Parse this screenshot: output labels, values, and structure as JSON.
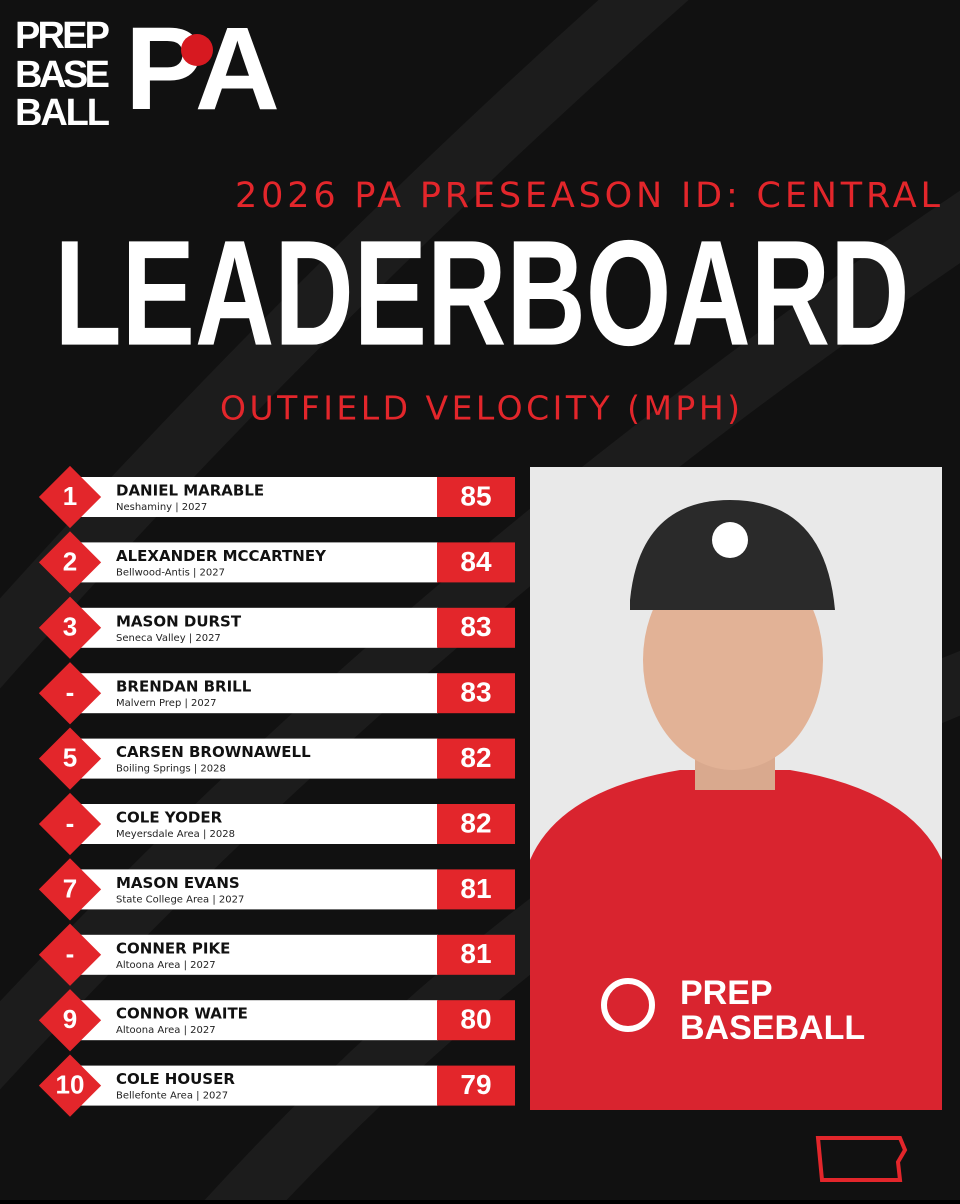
{
  "logo": {
    "lines": [
      "PREP",
      "BASE",
      "BALL"
    ],
    "mark": "PA"
  },
  "header": {
    "event": "2026 PA PRESEASON ID: CENTRAL",
    "title": "LEADERBOARD",
    "subtitle": "OUTFIELD VELOCITY (MPH)"
  },
  "leaderboard": {
    "rows": [
      {
        "rank": "1",
        "name": "DANIEL MARABLE",
        "detail": "Neshaminy | 2027",
        "value": 85
      },
      {
        "rank": "2",
        "name": "ALEXANDER MCCARTNEY",
        "detail": "Bellwood-Antis | 2027",
        "value": 84
      },
      {
        "rank": "3",
        "name": "MASON DURST",
        "detail": "Seneca Valley | 2027",
        "value": 83
      },
      {
        "rank": "-",
        "name": "BRENDAN BRILL",
        "detail": "Malvern Prep | 2027",
        "value": 83
      },
      {
        "rank": "5",
        "name": "CARSEN BROWNAWELL",
        "detail": "Boiling Springs | 2028",
        "value": 82
      },
      {
        "rank": "-",
        "name": "COLE YODER",
        "detail": "Meyersdale Area | 2028",
        "value": 82
      },
      {
        "rank": "7",
        "name": "MASON EVANS",
        "detail": "State College Area | 2027",
        "value": 81
      },
      {
        "rank": "-",
        "name": "CONNER PIKE",
        "detail": "Altoona Area | 2027",
        "value": 81
      },
      {
        "rank": "9",
        "name": "CONNOR WAITE",
        "detail": "Altoona Area | 2027",
        "value": 80
      },
      {
        "rank": "10",
        "name": "COLE HOUSER",
        "detail": "Bellefonte Area | 2027",
        "value": 79
      }
    ]
  },
  "photo": {
    "shirt_text": [
      "PREP",
      "BASEBALL"
    ]
  }
}
